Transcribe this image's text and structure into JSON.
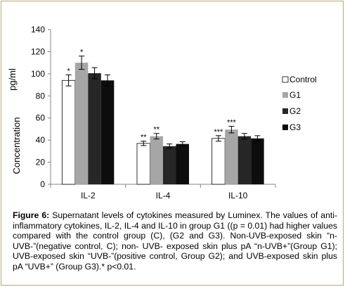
{
  "caption": {
    "label": "Figure 6:",
    "text": " Supernatant levels of cytokines measured by Luminex. The values of anti-inflammatory cytokines, IL-2, IL-4 and IL-10 in group G1 ((p = 0.01) had higher values compared with the control group (C), (G2 and G3). Non-UVB-exposed skin “n-UVB-”(negative control, C); non- UVB- exposed skin plus pA “n-UVB+”(Group G1); UVB-exposed skin “UVB-”(positive control, Group G2); and UVB-exposed skin plus pA “UVB+” (Group G3).* p<0.01."
  },
  "chart_data": {
    "type": "bar",
    "title": "",
    "ylabel_unit": "pg/ml",
    "ylabel": "Concentration",
    "xlabel": "",
    "ylim": [
      0,
      140
    ],
    "yticks": [
      0,
      20,
      40,
      60,
      80,
      100,
      120,
      140
    ],
    "categories": [
      "IL-2",
      "IL-4",
      "IL-10"
    ],
    "legend_position": "right",
    "grid": false,
    "series": [
      {
        "name": "Control",
        "color": "#ffffff",
        "values": [
          94,
          37,
          41.5
        ],
        "errors": [
          5,
          2,
          2.5
        ],
        "annotations": [
          "*",
          "**",
          "***"
        ]
      },
      {
        "name": "G1",
        "color": "#a6a6a6",
        "values": [
          110,
          43.5,
          49.5
        ],
        "errors": [
          6,
          2.5,
          3
        ],
        "annotations": [
          "*",
          "**",
          "***"
        ]
      },
      {
        "name": "G2",
        "color": "#262626",
        "values": [
          100.5,
          34.5,
          43.5
        ],
        "errors": [
          5,
          2,
          2.5
        ],
        "annotations": [
          "",
          "",
          ""
        ]
      },
      {
        "name": "G3",
        "color": "#0d0d0d",
        "values": [
          94,
          36.5,
          41.5
        ],
        "errors": [
          5,
          2,
          2.5
        ],
        "annotations": [
          "",
          "",
          ""
        ]
      }
    ]
  }
}
